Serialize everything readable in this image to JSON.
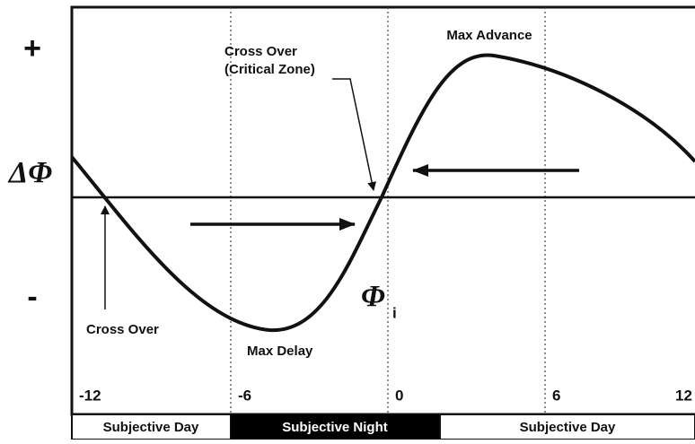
{
  "axis": {
    "plus": "+",
    "label": "ΔΦ",
    "minus": "-"
  },
  "annotations": {
    "max_advance": "Max Advance",
    "critical": [
      "Cross Over",
      "(Critical Zone)"
    ],
    "cross_over": "Cross Over",
    "max_delay": "Max Delay",
    "phi": "Φ",
    "phi_sub": "i"
  },
  "ticks": [
    "-12",
    "-6",
    "0",
    "6",
    "12"
  ],
  "bands": [
    "Subjective Day",
    "Subjective Night",
    "Subjective Day"
  ]
}
